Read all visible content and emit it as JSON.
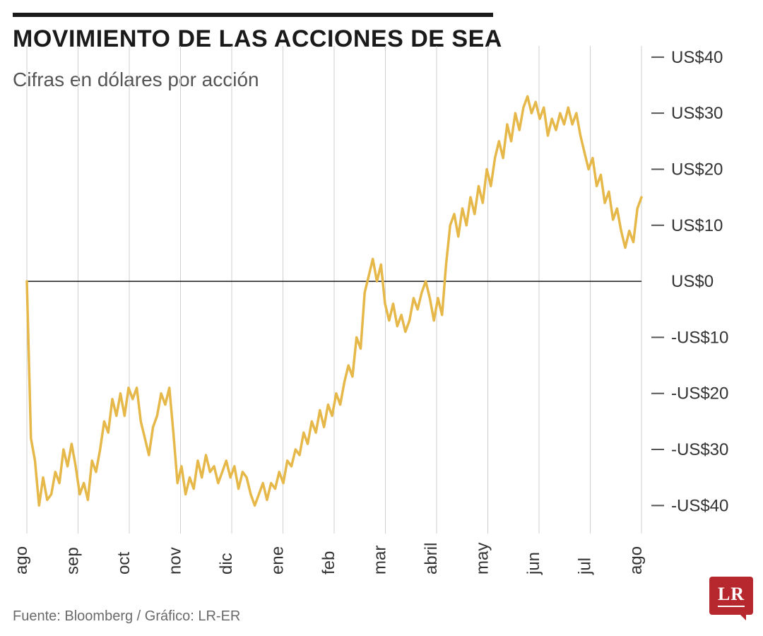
{
  "title": "MOVIMIENTO DE LAS ACCIONES DE SEA",
  "subtitle": "Cifras en dólares por acción",
  "footer": "Fuente: Bloomberg / Gráfico: LR-ER",
  "logo_text": "LR",
  "chart": {
    "type": "line",
    "line_color": "#e6b84a",
    "line_width": 3.5,
    "background_color": "#ffffff",
    "zero_line_color": "#1a1a1a",
    "grid_color": "#cfcfcf",
    "tick_dash_color": "#555555",
    "text_color": "#333333",
    "label_fontsize": 24,
    "y_axis": {
      "min": -45,
      "max": 42,
      "ticks": [
        40,
        30,
        20,
        10,
        0,
        -10,
        -20,
        -30,
        -40
      ],
      "tick_labels": [
        "US$40",
        "US$30",
        "US$20",
        "US$10",
        "US$0",
        "-US$10",
        "-US$20",
        "-US$30",
        "-US$40"
      ]
    },
    "x_axis": {
      "labels": [
        "ago",
        "sep",
        "oct",
        "nov",
        "dic",
        "ene",
        "feb",
        "mar",
        "abril",
        "may",
        "jun",
        "jul",
        "ago"
      ]
    },
    "series": [
      0,
      -28,
      -32,
      -40,
      -35,
      -39,
      -38,
      -34,
      -36,
      -30,
      -33,
      -29,
      -33,
      -38,
      -36,
      -39,
      -32,
      -34,
      -30,
      -25,
      -27,
      -21,
      -24,
      -20,
      -24,
      -19,
      -21,
      -19,
      -25,
      -28,
      -31,
      -26,
      -24,
      -20,
      -22,
      -19,
      -27,
      -36,
      -33,
      -38,
      -35,
      -37,
      -32,
      -35,
      -31,
      -34,
      -33,
      -36,
      -34,
      -32,
      -35,
      -33,
      -37,
      -34,
      -35,
      -38,
      -40,
      -38,
      -36,
      -39,
      -36,
      -37,
      -34,
      -36,
      -32,
      -33,
      -30,
      -31,
      -27,
      -29,
      -25,
      -27,
      -23,
      -26,
      -22,
      -24,
      -20,
      -22,
      -18,
      -15,
      -17,
      -10,
      -12,
      -2,
      1,
      4,
      0,
      3,
      -4,
      -7,
      -4,
      -8,
      -6,
      -9,
      -7,
      -3,
      -5,
      -2,
      0,
      -3,
      -7,
      -3,
      -6,
      3,
      10,
      12,
      8,
      13,
      10,
      15,
      12,
      17,
      14,
      20,
      17,
      22,
      25,
      22,
      28,
      25,
      30,
      27,
      31,
      33,
      30,
      32,
      29,
      31,
      26,
      29,
      27,
      30,
      28,
      31,
      28,
      30,
      26,
      23,
      20,
      22,
      17,
      19,
      14,
      16,
      11,
      13,
      9,
      6,
      9,
      7,
      13,
      15
    ]
  }
}
